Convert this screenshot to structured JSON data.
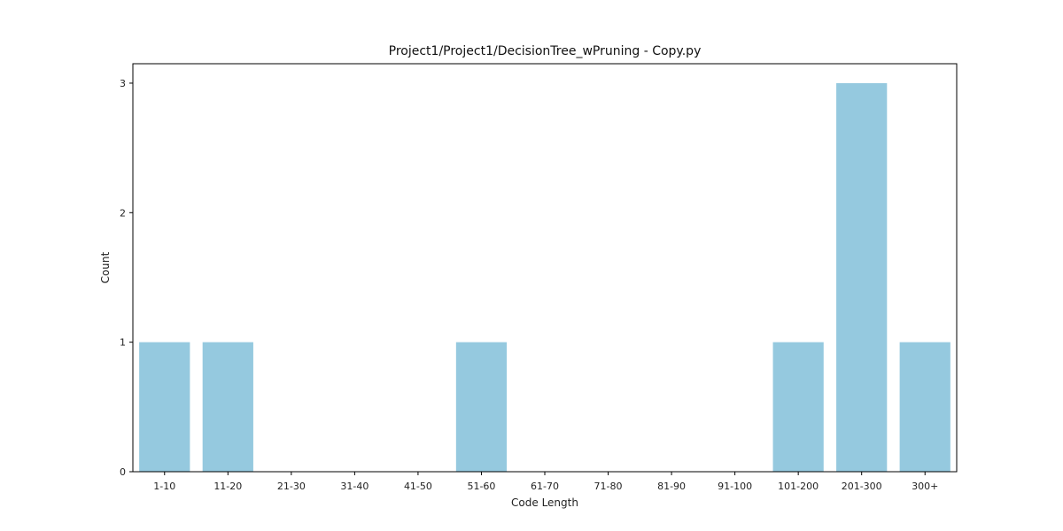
{
  "chart_data": {
    "type": "bar",
    "title": "Project1/Project1/DecisionTree_wPruning - Copy.py",
    "xlabel": "Code Length",
    "ylabel": "Count",
    "categories": [
      "1-10",
      "11-20",
      "21-30",
      "31-40",
      "41-50",
      "51-60",
      "61-70",
      "71-80",
      "81-90",
      "91-100",
      "101-200",
      "201-300",
      "300+"
    ],
    "values": [
      1,
      1,
      0,
      0,
      0,
      1,
      0,
      0,
      0,
      0,
      1,
      3,
      1
    ],
    "yticks": [
      "0",
      "1",
      "2",
      "3"
    ],
    "ylim": [
      0,
      3.15
    ],
    "grid": false,
    "colors": {
      "bar": "#95c9df",
      "axis": "#000000"
    }
  }
}
